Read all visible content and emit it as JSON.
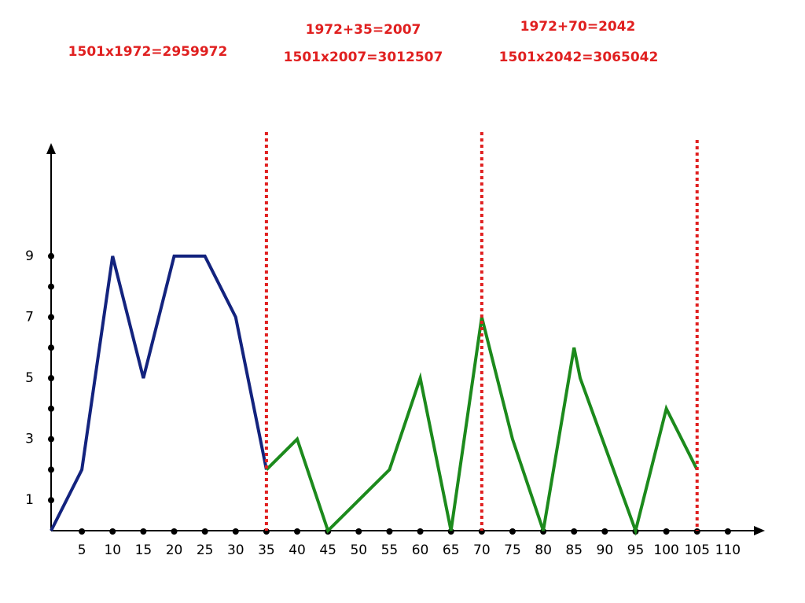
{
  "chart_data": {
    "type": "line",
    "xlim": [
      0,
      115
    ],
    "ylim": [
      0,
      12.5
    ],
    "xticks": [
      5,
      10,
      15,
      20,
      25,
      30,
      35,
      40,
      45,
      50,
      55,
      60,
      65,
      70,
      75,
      80,
      85,
      90,
      95,
      100,
      105,
      110
    ],
    "yticks": [
      1,
      3,
      5,
      7,
      9
    ],
    "yminor": [
      2,
      4,
      6,
      8
    ],
    "series": [
      {
        "color": "#13237e",
        "x": [
          0,
          5,
          10,
          15,
          20,
          25,
          30,
          35
        ],
        "values": [
          0,
          2,
          9,
          5,
          9,
          9,
          7,
          2
        ]
      },
      {
        "color": "#1c8a1c",
        "x": [
          35,
          40,
          45,
          50,
          55,
          60,
          65,
          70,
          75,
          80,
          85,
          86,
          95,
          100,
          105
        ],
        "values": [
          2,
          3,
          0,
          1,
          2,
          5,
          0,
          7,
          3,
          0,
          6,
          5,
          0,
          4,
          2
        ]
      }
    ],
    "vlines": [
      35,
      70,
      105
    ],
    "vline_color": "#e02020",
    "annotations": [
      {
        "text": "1501x1972=2959972"
      },
      {
        "text": "1972+35=2007"
      },
      {
        "text": "1501x2007=3012507"
      },
      {
        "text": "1972+70=2042"
      },
      {
        "text": "1501x2042=3065042"
      }
    ]
  }
}
